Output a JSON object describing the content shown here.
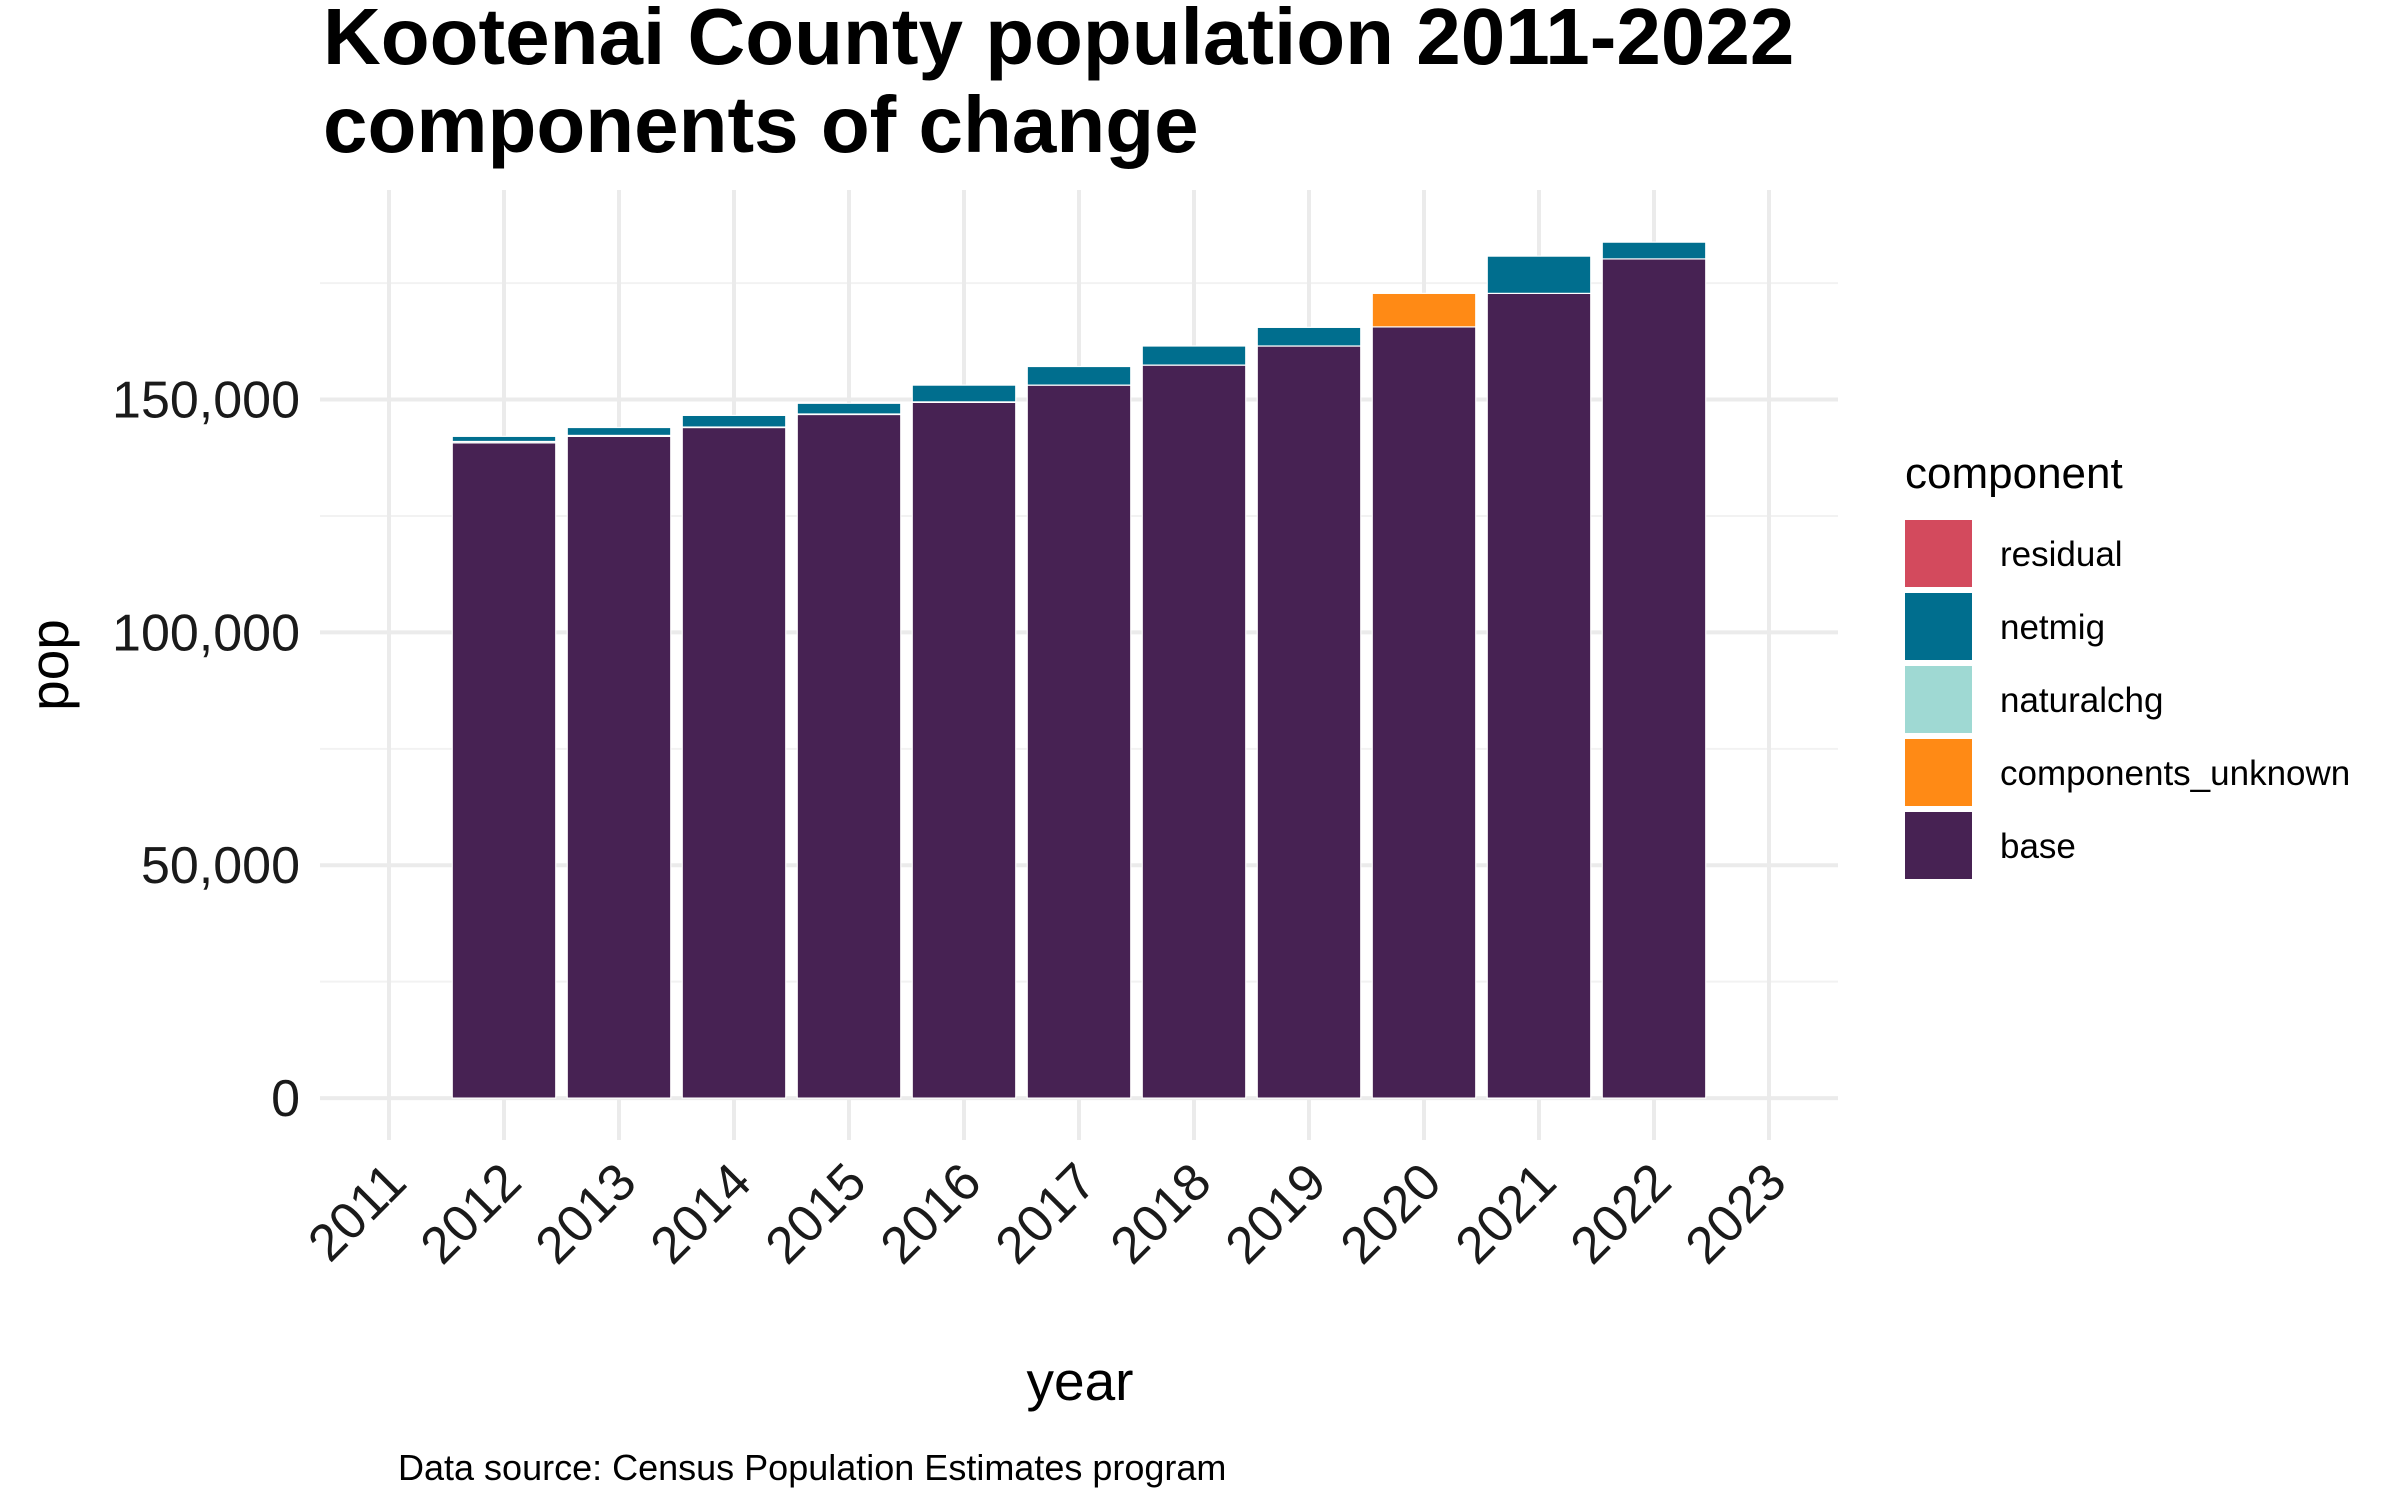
{
  "chart_data": {
    "type": "bar",
    "stacked": true,
    "title": "Kootenai County population 2011-2022",
    "subtitle": "components of change",
    "xlabel": "year",
    "ylabel": "pop",
    "caption": "Data source: Census Population Estimates program",
    "legend_title": "component",
    "x_ticks": [
      "2011",
      "2012",
      "2013",
      "2014",
      "2015",
      "2016",
      "2017",
      "2018",
      "2019",
      "2020",
      "2021",
      "2022",
      "2023"
    ],
    "y_ticks": [
      {
        "value": 0,
        "label": "0"
      },
      {
        "value": 50000,
        "label": "50,000"
      },
      {
        "value": 100000,
        "label": "100,000"
      },
      {
        "value": 150000,
        "label": "150,000"
      }
    ],
    "xlim": [
      2010.4,
      2023.6
    ],
    "ylim": [
      -9000,
      195000
    ],
    "categories": [
      2012,
      2013,
      2014,
      2015,
      2016,
      2017,
      2018,
      2019,
      2020,
      2021,
      2022
    ],
    "series": [
      {
        "name": "base",
        "color": "#472253",
        "values": [
          140700,
          142100,
          144000,
          146800,
          149400,
          153100,
          157400,
          161500,
          165600,
          172800,
          180200
        ]
      },
      {
        "name": "naturalchg",
        "color": "#9fd9d3",
        "values": [
          300,
          200,
          100,
          100,
          100,
          0,
          0,
          0,
          0,
          -100,
          0
        ]
      },
      {
        "name": "netmig",
        "color": "#006e8e",
        "values": [
          1100,
          1700,
          2500,
          2300,
          3600,
          4000,
          4100,
          4000,
          0,
          8000,
          3600
        ]
      },
      {
        "name": "components_unknown",
        "color": "#ff8a15",
        "values": [
          0,
          0,
          0,
          0,
          0,
          0,
          0,
          0,
          7200,
          0,
          0
        ]
      },
      {
        "name": "residual",
        "color": "#d34a5d",
        "values": [
          0,
          0,
          0,
          0,
          0,
          0,
          0,
          0,
          0,
          0,
          0
        ]
      }
    ],
    "legend_order": [
      "residual",
      "netmig",
      "naturalchg",
      "components_unknown",
      "base"
    ],
    "legend_position": "right",
    "grid": true
  }
}
